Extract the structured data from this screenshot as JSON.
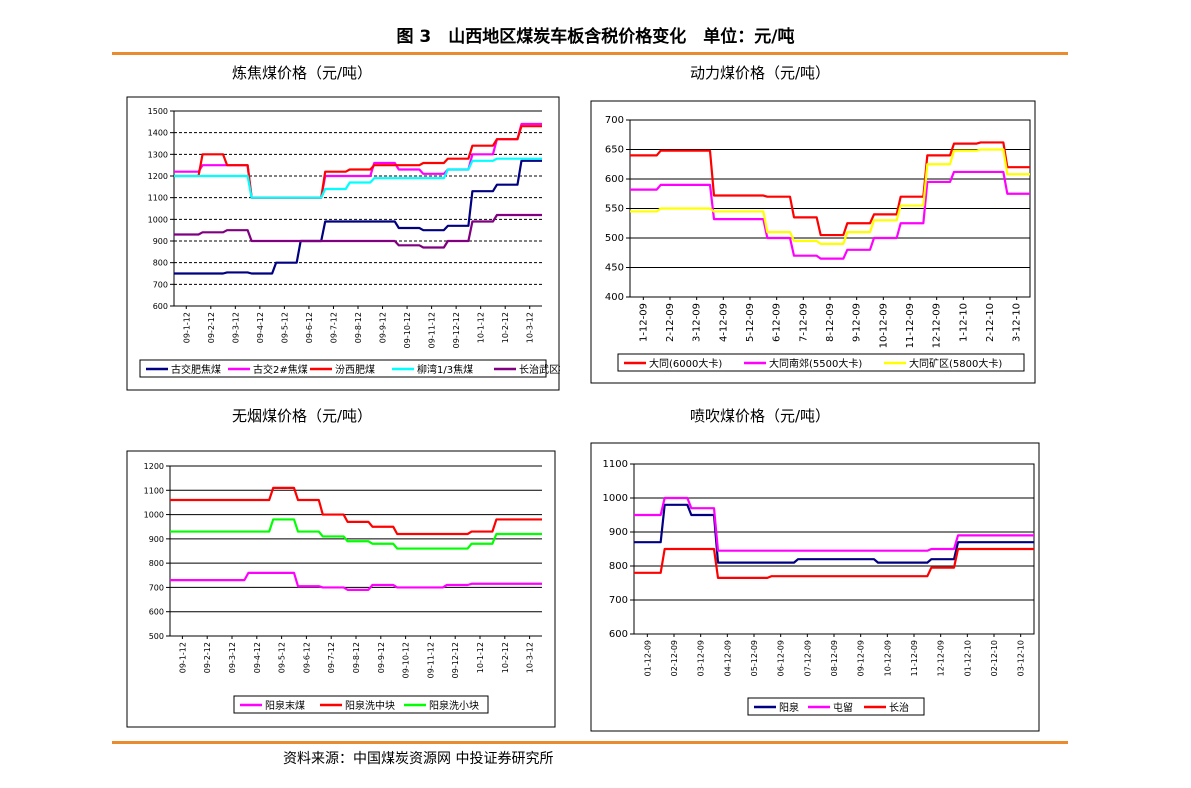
{
  "figure": {
    "title": "图 3　山西地区煤炭车板含税价格变化　单位：元/吨",
    "source": "资料来源：中国煤炭资源网  中投证券研究所"
  },
  "chart_data": [
    {
      "id": "coking",
      "type": "line",
      "title": "炼焦煤价格（元/吨）",
      "ylim": [
        600,
        1500
      ],
      "yticks": [
        600,
        700,
        800,
        900,
        1000,
        1100,
        1200,
        1300,
        1400,
        1500
      ],
      "categories": [
        "09-1-12",
        "09-2-12",
        "09-3-12",
        "09-4-12",
        "09-5-12",
        "09-6-12",
        "09-7-12",
        "09-8-12",
        "09-9-12",
        "09-10-12",
        "09-11-12",
        "09-12-12",
        "10-1-12",
        "10-2-12",
        "10-3-12"
      ],
      "series": [
        {
          "name": "古交肥焦煤",
          "color": "#000080",
          "values": [
            750,
            750,
            755,
            750,
            800,
            900,
            990,
            990,
            990,
            960,
            950,
            970,
            1130,
            1160,
            1270
          ]
        },
        {
          "name": "古交2#焦煤",
          "color": "#FF00FF",
          "values": [
            1220,
            1250,
            1250,
            1100,
            1100,
            1100,
            1200,
            1200,
            1260,
            1230,
            1210,
            1230,
            1300,
            1370,
            1440
          ]
        },
        {
          "name": "汾西肥煤",
          "color": "#FF0000",
          "values": [
            1200,
            1300,
            1250,
            1100,
            1100,
            1100,
            1220,
            1230,
            1250,
            1250,
            1260,
            1280,
            1340,
            1370,
            1430
          ]
        },
        {
          "name": "柳湾1/3焦煤",
          "color": "#00FFFF",
          "values": [
            1200,
            1200,
            1200,
            1100,
            1100,
            1100,
            1140,
            1170,
            1190,
            1190,
            1190,
            1230,
            1270,
            1280,
            1280
          ]
        },
        {
          "name": "长治武区瘦煤",
          "color": "#800080",
          "values": [
            930,
            940,
            950,
            900,
            900,
            900,
            900,
            900,
            900,
            880,
            870,
            900,
            990,
            1020,
            1020
          ]
        }
      ]
    },
    {
      "id": "steam",
      "type": "line",
      "title": "动力煤价格（元/吨）",
      "ylim": [
        400,
        700
      ],
      "yticks": [
        400,
        450,
        500,
        550,
        600,
        650,
        700
      ],
      "categories": [
        "1-12-09",
        "2-12-09",
        "3-12-09",
        "4-12-09",
        "5-12-09",
        "6-12-09",
        "7-12-09",
        "8-12-09",
        "9-12-09",
        "10-12-09",
        "11-12-09",
        "12-12-09",
        "1-12-10",
        "2-12-10",
        "3-12-10"
      ],
      "series": [
        {
          "name": "大同(6000大卡)",
          "color": "#FF0000",
          "values": [
            640,
            648,
            648,
            572,
            572,
            570,
            535,
            505,
            525,
            540,
            570,
            640,
            660,
            662,
            620
          ]
        },
        {
          "name": "大同南郊(5500大卡)",
          "color": "#FF00FF",
          "values": [
            582,
            590,
            590,
            532,
            532,
            500,
            470,
            465,
            480,
            500,
            525,
            595,
            612,
            612,
            575
          ]
        },
        {
          "name": "大同矿区(5800大卡)",
          "color": "#FFFF00",
          "values": [
            545,
            550,
            550,
            545,
            545,
            510,
            495,
            490,
            510,
            530,
            555,
            625,
            648,
            650,
            608
          ]
        }
      ]
    },
    {
      "id": "anthracite",
      "type": "line",
      "title": "无烟煤价格（元/吨）",
      "ylim": [
        500,
        1200
      ],
      "yticks": [
        500,
        600,
        700,
        800,
        900,
        1000,
        1100,
        1200
      ],
      "categories": [
        "09-1-12",
        "09-2-12",
        "09-3-12",
        "09-4-12",
        "09-5-12",
        "09-6-12",
        "09-7-12",
        "09-8-12",
        "09-9-12",
        "09-10-12",
        "09-11-12",
        "09-12-12",
        "10-1-12",
        "10-2-12",
        "10-3-12"
      ],
      "series": [
        {
          "name": "阳泉末煤",
          "color": "#FF00FF",
          "values": [
            730,
            730,
            730,
            760,
            760,
            705,
            700,
            690,
            710,
            700,
            700,
            710,
            715,
            715,
            715
          ]
        },
        {
          "name": "阳泉洗中块",
          "color": "#FF0000",
          "values": [
            1060,
            1060,
            1060,
            1060,
            1110,
            1060,
            1000,
            970,
            950,
            920,
            920,
            920,
            930,
            980,
            980
          ]
        },
        {
          "name": "阳泉洗小块",
          "color": "#00FF00",
          "values": [
            930,
            930,
            930,
            930,
            980,
            930,
            910,
            890,
            880,
            860,
            860,
            860,
            880,
            920,
            920
          ]
        }
      ]
    },
    {
      "id": "pci",
      "type": "line",
      "title": "喷吹煤价格（元/吨）",
      "ylim": [
        600,
        1100
      ],
      "yticks": [
        600,
        700,
        800,
        900,
        1000,
        1100
      ],
      "categories": [
        "01-12-09",
        "02-12-09",
        "03-12-09",
        "04-12-09",
        "05-12-09",
        "06-12-09",
        "07-12-09",
        "08-12-09",
        "09-12-09",
        "10-12-09",
        "11-12-09",
        "12-12-09",
        "01-12-10",
        "02-12-10",
        "03-12-10"
      ],
      "series": [
        {
          "name": "阳泉",
          "color": "#000080",
          "values": [
            870,
            980,
            950,
            810,
            810,
            810,
            820,
            820,
            820,
            810,
            810,
            820,
            870,
            870,
            870
          ]
        },
        {
          "name": "屯留",
          "color": "#FF00FF",
          "values": [
            950,
            1000,
            970,
            845,
            845,
            845,
            845,
            845,
            845,
            845,
            845,
            850,
            890,
            890,
            890
          ]
        },
        {
          "name": "长治",
          "color": "#FF0000",
          "values": [
            780,
            850,
            850,
            765,
            765,
            770,
            770,
            770,
            770,
            770,
            770,
            795,
            850,
            850,
            850
          ]
        }
      ]
    }
  ]
}
